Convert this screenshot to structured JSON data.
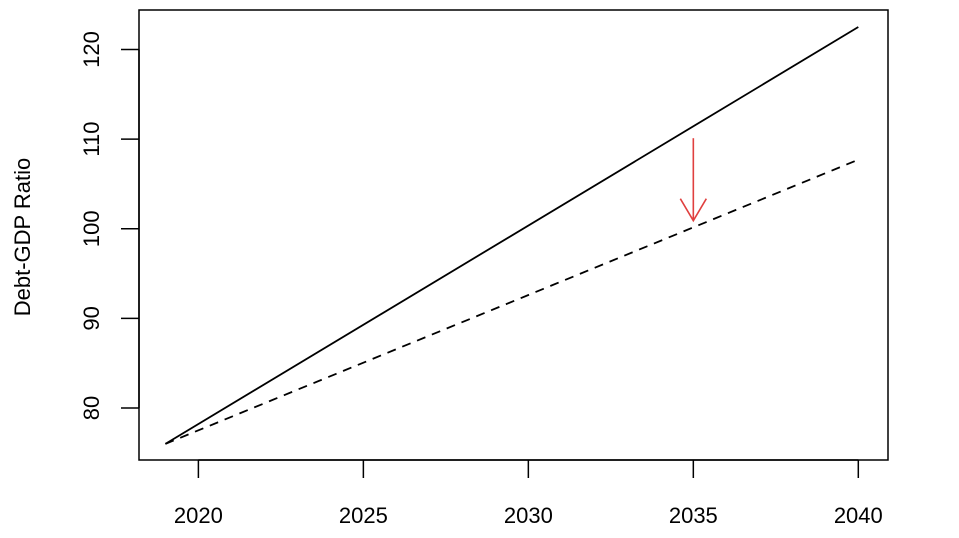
{
  "chart_data": {
    "type": "line",
    "title": "",
    "xlabel": "",
    "ylabel": "Debt-GDP Ratio",
    "xlim": [
      2018.2,
      2040.9
    ],
    "ylim": [
      74.2,
      124.4
    ],
    "x_ticks": [
      2020,
      2025,
      2030,
      2035,
      2040
    ],
    "y_ticks": [
      80,
      90,
      100,
      110,
      120
    ],
    "x_tick_labels": [
      "2020",
      "2025",
      "2030",
      "2035",
      "2040"
    ],
    "y_tick_labels": [
      "80",
      "90",
      "100",
      "110",
      "120"
    ],
    "grid": false,
    "series": [
      {
        "style": "solid",
        "color": "#000000",
        "x": [
          2019,
          2040
        ],
        "y": [
          76,
          122.5
        ]
      },
      {
        "style": "dashed",
        "color": "#000000",
        "x": [
          2019,
          2040
        ],
        "y": [
          76,
          107.7
        ]
      }
    ],
    "annotations": [
      {
        "type": "arrow",
        "color": "#e0403f",
        "x": 2035,
        "y_from": 110.1,
        "y_to": 100.9
      }
    ]
  }
}
